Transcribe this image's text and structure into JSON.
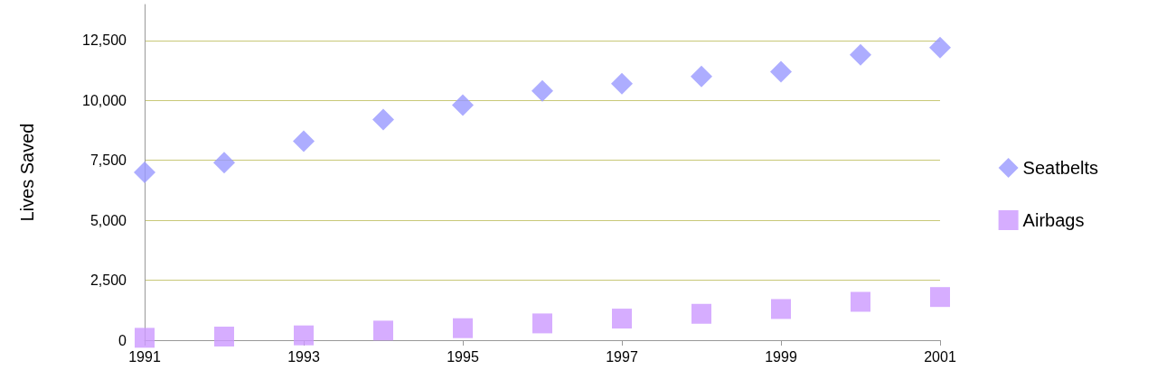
{
  "chart_data": {
    "type": "scatter",
    "ylabel": "Lives Saved",
    "x": [
      1991,
      1992,
      1993,
      1994,
      1995,
      1996,
      1997,
      1998,
      1999,
      2000,
      2001
    ],
    "series": [
      {
        "name": "Seatbelts",
        "color": "#9999ff",
        "marker": "diamond",
        "values": [
          7000,
          7400,
          8300,
          9200,
          9800,
          10400,
          10700,
          11000,
          11200,
          11900,
          12200
        ]
      },
      {
        "name": "Airbags",
        "color": "#cc99ff",
        "marker": "square",
        "values": [
          100,
          150,
          200,
          400,
          500,
          700,
          900,
          1100,
          1300,
          1600,
          1800
        ]
      }
    ],
    "xlim": [
      1991,
      2001
    ],
    "xticks": [
      1991,
      1993,
      1995,
      1997,
      1999,
      2001
    ],
    "ylim": [
      0,
      14000
    ],
    "yticks": [
      0,
      {
        "value": 2500,
        "label": "2,500"
      },
      {
        "value": 5000,
        "label": "5,000"
      },
      {
        "value": 7500,
        "label": "7,500"
      },
      {
        "value": 10000,
        "label": "10,000"
      },
      {
        "value": 12500,
        "label": "12,500"
      }
    ],
    "grid": "y",
    "legend": "right"
  }
}
